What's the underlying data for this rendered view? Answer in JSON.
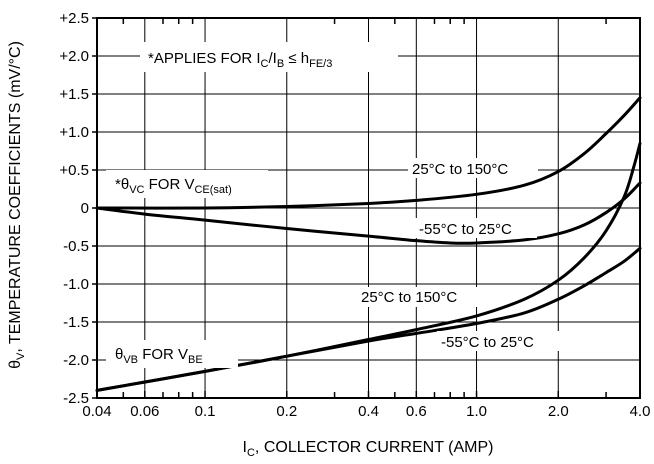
{
  "chart_data": {
    "type": "line",
    "xlabel": {
      "main": "I",
      "sub": "C",
      "rest": ", COLLECTOR CURRENT (AMP)"
    },
    "ylabel": {
      "main": "θ",
      "sub": "V",
      "rest": ", TEMPERATURE COEFFICIENTS (mV/°C)"
    },
    "x_scale": "log",
    "xlim": [
      0.04,
      4.0
    ],
    "ylim": [
      -2.5,
      2.5
    ],
    "grid": true,
    "x_major_ticks": [
      {
        "v": 0.04,
        "label": "0.04"
      },
      {
        "v": 0.06,
        "label": "0.06"
      },
      {
        "v": 0.1,
        "label": "0.1"
      },
      {
        "v": 0.2,
        "label": "0.2"
      },
      {
        "v": 0.4,
        "label": "0.4"
      },
      {
        "v": 0.6,
        "label": "0.6"
      },
      {
        "v": 1.0,
        "label": "1.0"
      },
      {
        "v": 2.0,
        "label": "2.0"
      },
      {
        "v": 4.0,
        "label": "4.0"
      }
    ],
    "x_minor_ticks": [
      0.05,
      0.07,
      0.08,
      0.09,
      0.3,
      0.5,
      0.7,
      0.8,
      0.9,
      3.0
    ],
    "y_ticks": [
      {
        "v": 2.5,
        "label": "+2.5"
      },
      {
        "v": 2.0,
        "label": "+2.0"
      },
      {
        "v": 1.5,
        "label": "+1.5"
      },
      {
        "v": 1.0,
        "label": "+1.0"
      },
      {
        "v": 0.5,
        "label": "+0.5"
      },
      {
        "v": 0,
        "label": "0"
      },
      {
        "v": -0.5,
        "label": "-0.5"
      },
      {
        "v": -1.0,
        "label": "-1.0"
      },
      {
        "v": -1.5,
        "label": "-1.5"
      },
      {
        "v": -2.0,
        "label": "-2.0"
      },
      {
        "v": -2.5,
        "label": "-2.5"
      }
    ],
    "series": [
      {
        "id": "vc-25-150",
        "x": [
          0.04,
          0.1,
          0.2,
          0.4,
          0.6,
          1.0,
          1.5,
          2.0,
          2.5,
          3.0,
          3.5,
          4.0
        ],
        "y": [
          0.0,
          0.0,
          0.02,
          0.06,
          0.1,
          0.18,
          0.3,
          0.48,
          0.72,
          0.98,
          1.22,
          1.45
        ]
      },
      {
        "id": "vc-m55-25",
        "x": [
          0.04,
          0.06,
          0.1,
          0.2,
          0.4,
          0.6,
          0.8,
          1.0,
          1.5,
          2.0,
          2.5,
          3.0,
          3.5,
          4.0
        ],
        "y": [
          0.0,
          -0.08,
          -0.16,
          -0.27,
          -0.37,
          -0.43,
          -0.46,
          -0.46,
          -0.42,
          -0.34,
          -0.22,
          -0.06,
          0.12,
          0.33
        ]
      },
      {
        "id": "vb-25-150",
        "x": [
          0.04,
          0.1,
          0.2,
          0.4,
          0.6,
          1.0,
          1.5,
          2.0,
          2.5,
          3.0,
          3.5,
          3.8,
          4.0
        ],
        "y": [
          -2.4,
          -2.15,
          -1.95,
          -1.73,
          -1.6,
          -1.42,
          -1.2,
          -0.95,
          -0.65,
          -0.3,
          0.15,
          0.55,
          0.85
        ]
      },
      {
        "id": "vb-m55-25",
        "x": [
          0.04,
          0.1,
          0.2,
          0.4,
          0.6,
          1.0,
          1.5,
          2.0,
          2.5,
          3.0,
          3.5,
          4.0
        ],
        "y": [
          -2.4,
          -2.15,
          -1.95,
          -1.75,
          -1.65,
          -1.52,
          -1.38,
          -1.2,
          -1.02,
          -0.85,
          -0.7,
          -0.53
        ]
      }
    ],
    "annotations": {
      "applies": {
        "pre": "*APPLIES FOR I",
        "s1": "C",
        "mid": "/I",
        "s2": "B",
        "rel": " ≤ h",
        "s3": "FE/3"
      },
      "theta_vc": {
        "pre": "*θ",
        "s1": "VC",
        "mid": " FOR V",
        "s2": "CE(sat)"
      },
      "theta_vb": {
        "pre": "θ",
        "s1": "VB",
        "mid": " FOR V",
        "s2": "BE"
      },
      "vc_25_150": "25°C to 150°C",
      "vc_m55_25": "-55°C to 25°C",
      "vb_25_150": "25°C to 150°C",
      "vb_m55_25": "-55°C to 25°C"
    }
  }
}
